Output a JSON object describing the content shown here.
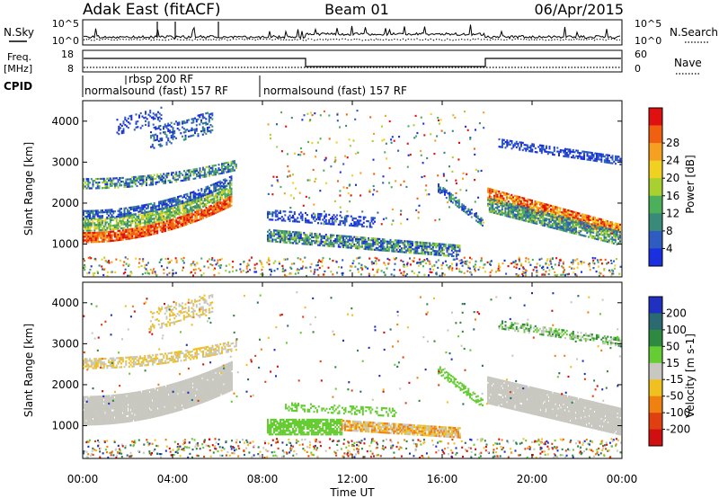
{
  "header": {
    "title": "Adak East (fitACF)",
    "beam": "Beam 01",
    "date": "06/Apr/2015"
  },
  "noise_panel": {
    "left_label": "N.Sky",
    "right_label": "N.Search",
    "left_ticks": [
      "10^5",
      "10^0"
    ],
    "right_ticks": [
      "10^5",
      "10^0"
    ]
  },
  "freq_panel": {
    "left_label_1": "Freq.",
    "left_label_2": "[MHz]",
    "right_label": "Nave",
    "left_ticks": [
      "18",
      "8"
    ],
    "right_ticks": [
      "60",
      "0"
    ],
    "cpid_label": "CPID",
    "cpid_1": "normalsound (fast) 157 RF",
    "cpid_2": "rbsp 200 RF",
    "cpid_3": "normalsound (fast) 157 RF"
  },
  "chart_data": [
    {
      "type": "heatmap",
      "name": "power",
      "ylabel": "Slant Range [km]",
      "ylim": [
        200,
        4500
      ],
      "yticks": [
        "1000",
        "2000",
        "3000",
        "4000"
      ],
      "colorbar_label": "Power [dB]",
      "colorbar_ticks": [
        "4",
        "8",
        "12",
        "16",
        "20",
        "24",
        "28"
      ],
      "colors": [
        "#1a2fe0",
        "#2e5cc0",
        "#3a8a7a",
        "#4caf5a",
        "#a8d030",
        "#f0d020",
        "#f5a020",
        "#f06010",
        "#e01010"
      ]
    },
    {
      "type": "heatmap",
      "name": "velocity",
      "ylabel": "Slant Range [km]",
      "ylim": [
        200,
        4500
      ],
      "yticks": [
        "1000",
        "2000",
        "3000",
        "4000"
      ],
      "colorbar_label": "Velocity [m s-1]",
      "colorbar_ticks": [
        "200",
        "100",
        "50",
        "15",
        "-15",
        "-50",
        "-100",
        "-200"
      ],
      "colors": [
        "#2030c0",
        "#2a6a70",
        "#2e8a40",
        "#66cc33",
        "#c8c8c0",
        "#f0c020",
        "#f08010",
        "#e04010",
        "#d01010"
      ]
    }
  ],
  "xaxis": {
    "label": "Time UT",
    "ticks": [
      "00:00",
      "04:00",
      "08:00",
      "12:00",
      "16:00",
      "20:00",
      "00:00"
    ]
  }
}
